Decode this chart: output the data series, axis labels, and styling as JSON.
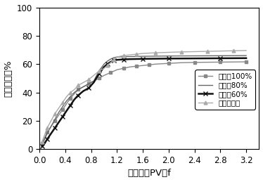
{
  "title": "",
  "xlabel": "累计注入PV，f",
  "ylabel": "驱油效率，%",
  "xlim": [
    0,
    3.4
  ],
  "ylim": [
    0,
    100
  ],
  "xticks": [
    0,
    0.4,
    0.8,
    1.2,
    1.6,
    2,
    2.4,
    2.8,
    3.2
  ],
  "yticks": [
    0,
    20,
    40,
    60,
    80,
    100
  ],
  "series": [
    {
      "label": "含水率100%",
      "color": "#888888",
      "marker": "s",
      "markersize": 3.5,
      "linewidth": 1.0,
      "markevery": 2,
      "x": [
        0.04,
        0.08,
        0.12,
        0.18,
        0.24,
        0.3,
        0.36,
        0.42,
        0.48,
        0.54,
        0.6,
        0.68,
        0.76,
        0.84,
        0.92,
        1.0,
        1.1,
        1.2,
        1.3,
        1.4,
        1.5,
        1.6,
        1.7,
        1.8,
        2.0,
        2.2,
        2.4,
        2.6,
        2.8,
        3.0,
        3.2
      ],
      "y": [
        4,
        8,
        12,
        16,
        20,
        24,
        28,
        32,
        36,
        39,
        42,
        44,
        46,
        48,
        50,
        52,
        54,
        56,
        57,
        58,
        58.5,
        59,
        59.5,
        60,
        60.5,
        61,
        61.2,
        61.3,
        61.4,
        61.5,
        61.6
      ]
    },
    {
      "label": "含水率80%",
      "color": "#666666",
      "marker": null,
      "markersize": 0,
      "linewidth": 1.0,
      "markevery": 1,
      "x": [
        0.04,
        0.08,
        0.12,
        0.18,
        0.24,
        0.3,
        0.36,
        0.42,
        0.48,
        0.54,
        0.6,
        0.68,
        0.76,
        0.84,
        0.92,
        1.0,
        1.05,
        1.1,
        1.15,
        1.2,
        1.3,
        1.4,
        1.5,
        1.6,
        1.8,
        2.0,
        2.4,
        2.8,
        3.2
      ],
      "y": [
        3,
        7,
        11,
        16,
        21,
        26,
        30,
        34,
        37,
        40,
        42,
        44,
        46,
        48,
        55,
        60,
        62,
        63.5,
        64.5,
        65,
        65.2,
        65.3,
        65.4,
        65.5,
        65.6,
        65.7,
        65.8,
        65.9,
        66.0
      ]
    },
    {
      "label": "含水率60%",
      "color": "#111111",
      "marker": "x",
      "markersize": 4,
      "linewidth": 1.8,
      "markevery": 2,
      "x": [
        0.04,
        0.08,
        0.12,
        0.18,
        0.24,
        0.3,
        0.36,
        0.42,
        0.48,
        0.54,
        0.6,
        0.68,
        0.76,
        0.84,
        0.92,
        1.0,
        1.05,
        1.1,
        1.15,
        1.2,
        1.3,
        1.4,
        1.6,
        1.8,
        2.0,
        2.4,
        2.8,
        3.2
      ],
      "y": [
        2,
        4,
        7,
        11,
        15,
        19,
        23,
        27,
        31,
        35,
        38,
        41,
        43,
        47,
        53,
        58,
        60,
        61.5,
        62.5,
        63,
        63.3,
        63.5,
        63.7,
        63.8,
        63.9,
        64.0,
        64.1,
        64.2
      ]
    },
    {
      "label": "原始含水率",
      "color": "#aaaaaa",
      "marker": "^",
      "markersize": 3.5,
      "linewidth": 1.0,
      "markevery": 2,
      "x": [
        0.04,
        0.08,
        0.12,
        0.18,
        0.24,
        0.3,
        0.36,
        0.42,
        0.48,
        0.54,
        0.6,
        0.68,
        0.76,
        0.84,
        0.92,
        1.0,
        1.05,
        1.1,
        1.15,
        1.2,
        1.3,
        1.4,
        1.5,
        1.6,
        1.8,
        2.0,
        2.2,
        2.4,
        2.6,
        2.8,
        3.0,
        3.2
      ],
      "y": [
        5,
        10,
        15,
        20,
        25,
        29,
        33,
        37,
        40,
        42,
        45,
        47,
        49,
        52,
        55,
        57,
        59,
        61,
        63,
        65,
        66,
        66.5,
        67,
        67.5,
        68,
        68.3,
        68.6,
        68.8,
        69.0,
        69.2,
        69.4,
        69.6
      ]
    }
  ],
  "legend_loc": "lower right",
  "font_size": 8.5,
  "label_font_size": 9.5
}
